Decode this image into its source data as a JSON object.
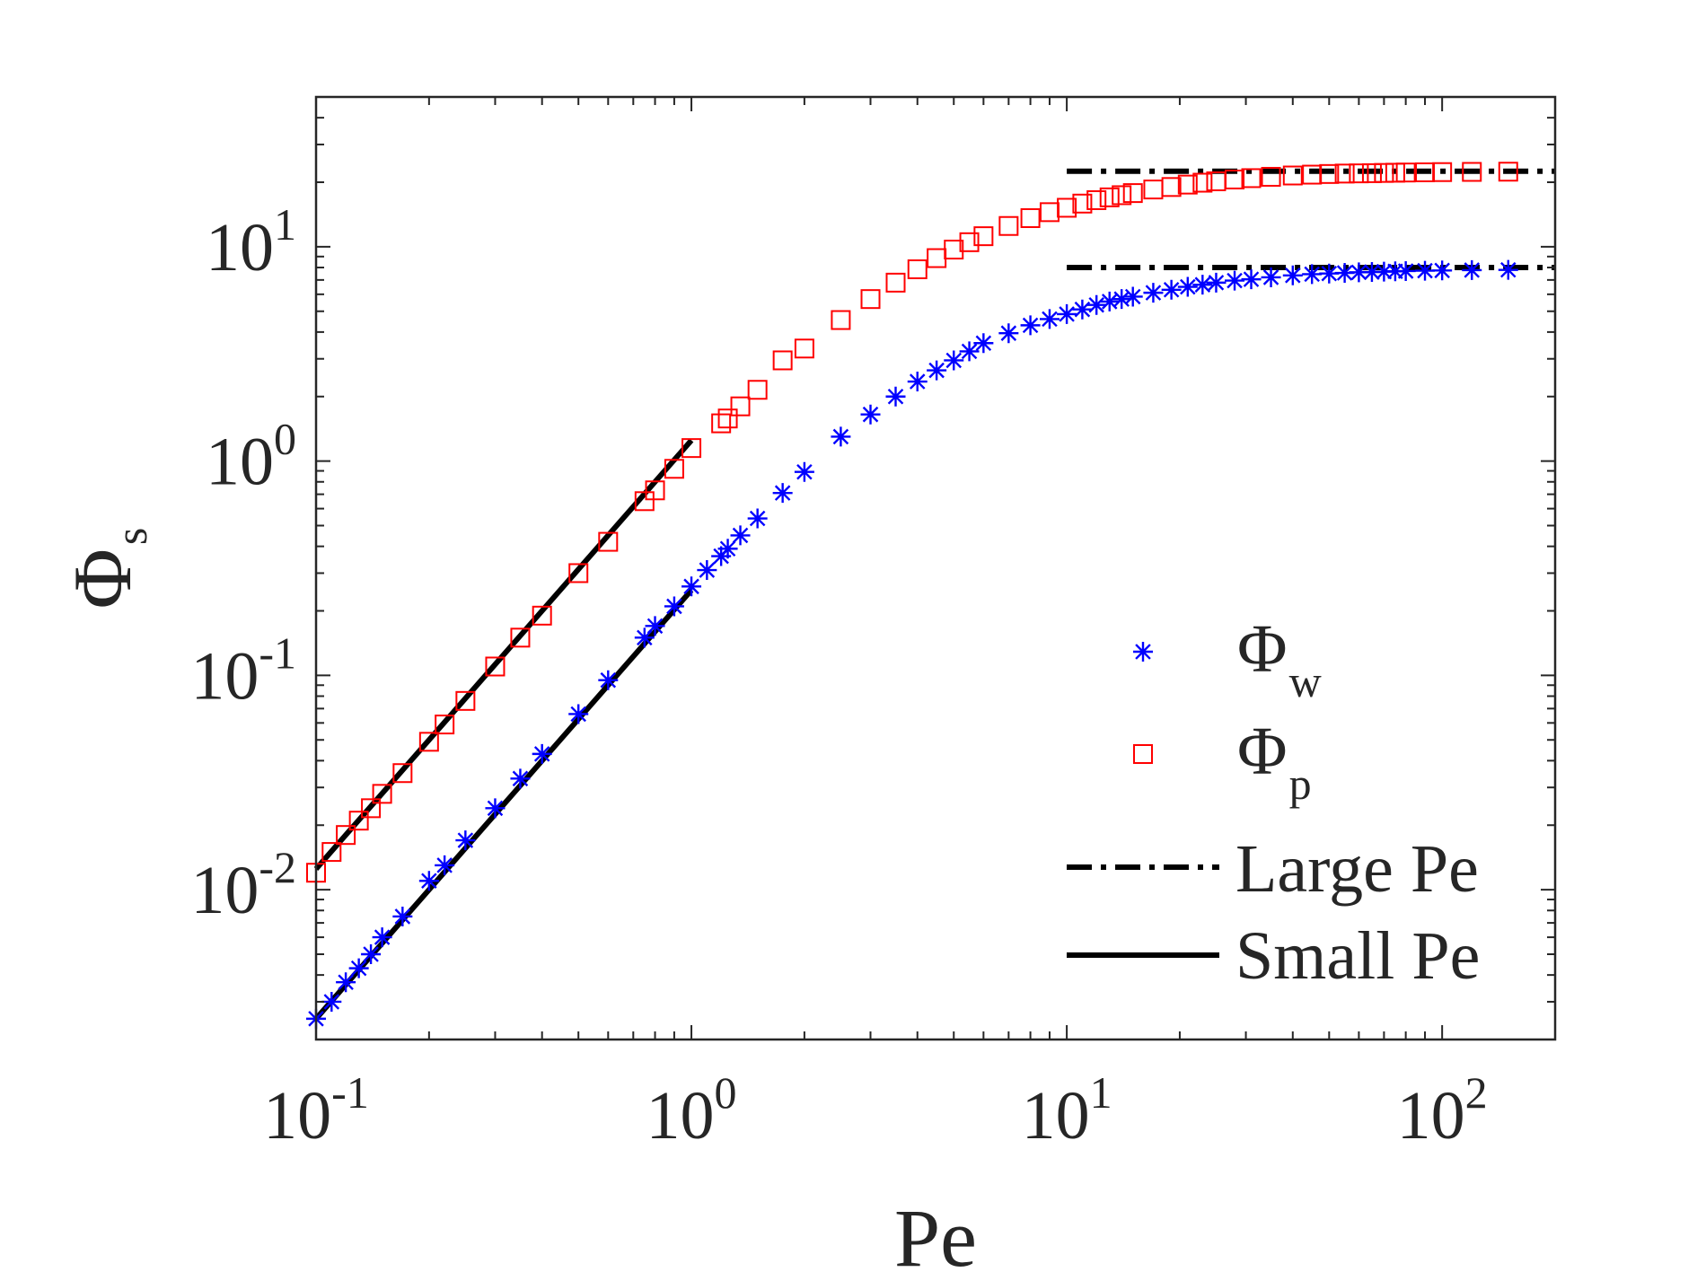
{
  "chart_data": {
    "type": "scatter",
    "xscale": "log",
    "yscale": "log",
    "xlim": [
      0.1,
      200
    ],
    "ylim": [
      0.002,
      50
    ],
    "xlabel": "Pe",
    "ylabel": {
      "base": "Φ",
      "sub": "s"
    },
    "xticks": [
      {
        "value": 0.1,
        "base": "10",
        "exp": "-1"
      },
      {
        "value": 1,
        "base": "10",
        "exp": "0"
      },
      {
        "value": 10,
        "base": "10",
        "exp": "1"
      },
      {
        "value": 100,
        "base": "10",
        "exp": "2"
      }
    ],
    "yticks": [
      {
        "value": 0.01,
        "base": "10",
        "exp": "-2"
      },
      {
        "value": 0.1,
        "base": "10",
        "exp": "-1"
      },
      {
        "value": 1,
        "base": "10",
        "exp": "0"
      },
      {
        "value": 10,
        "base": "10",
        "exp": "1"
      }
    ],
    "legend_position": "lower-right",
    "series": [
      {
        "name": "Φw",
        "base": "Φ",
        "sub": "w",
        "marker": "asterisk",
        "color": "#0000ff",
        "x": [
          0.1,
          0.11,
          0.12,
          0.13,
          0.14,
          0.15,
          0.17,
          0.2,
          0.22,
          0.25,
          0.3,
          0.35,
          0.4,
          0.5,
          0.6,
          0.75,
          0.8,
          0.9,
          1.0,
          1.1,
          1.2,
          1.25,
          1.35,
          1.5,
          1.75,
          2.0,
          2.5,
          3.0,
          3.5,
          4.0,
          4.5,
          5.0,
          5.5,
          6.0,
          7.0,
          8.0,
          9.0,
          10,
          11,
          12,
          13,
          14,
          15,
          17,
          19,
          21,
          23,
          25,
          28,
          31,
          35,
          40,
          45,
          50,
          55,
          60,
          65,
          70,
          75,
          80,
          90,
          100,
          120,
          150
        ],
        "y": [
          0.0025,
          0.003,
          0.0037,
          0.0043,
          0.005,
          0.006,
          0.0075,
          0.011,
          0.013,
          0.017,
          0.024,
          0.033,
          0.043,
          0.066,
          0.095,
          0.15,
          0.17,
          0.21,
          0.26,
          0.31,
          0.36,
          0.39,
          0.45,
          0.54,
          0.71,
          0.89,
          1.3,
          1.65,
          2.0,
          2.35,
          2.65,
          2.95,
          3.25,
          3.55,
          3.95,
          4.3,
          4.6,
          4.85,
          5.1,
          5.35,
          5.55,
          5.7,
          5.85,
          6.1,
          6.3,
          6.5,
          6.65,
          6.8,
          6.95,
          7.05,
          7.2,
          7.35,
          7.45,
          7.5,
          7.55,
          7.6,
          7.62,
          7.65,
          7.68,
          7.7,
          7.73,
          7.75,
          7.78,
          7.8
        ]
      },
      {
        "name": "Φp",
        "base": "Φ",
        "sub": "p",
        "marker": "square",
        "color": "#ff0000",
        "x": [
          0.1,
          0.11,
          0.12,
          0.13,
          0.14,
          0.15,
          0.17,
          0.2,
          0.22,
          0.25,
          0.3,
          0.35,
          0.4,
          0.5,
          0.6,
          0.75,
          0.8,
          0.9,
          1.0,
          1.2,
          1.25,
          1.35,
          1.5,
          1.75,
          2.0,
          2.5,
          3.0,
          3.5,
          4.0,
          4.5,
          5.0,
          5.5,
          6.0,
          7.0,
          8.0,
          9.0,
          10,
          11,
          12,
          13,
          14,
          15,
          17,
          19,
          21,
          23,
          25,
          28,
          31,
          35,
          40,
          45,
          50,
          55,
          60,
          65,
          70,
          75,
          80,
          90,
          100,
          120,
          150
        ],
        "y": [
          0.012,
          0.015,
          0.018,
          0.021,
          0.024,
          0.028,
          0.035,
          0.049,
          0.059,
          0.076,
          0.11,
          0.15,
          0.19,
          0.3,
          0.42,
          0.65,
          0.73,
          0.92,
          1.15,
          1.5,
          1.58,
          1.8,
          2.15,
          2.95,
          3.35,
          4.55,
          5.7,
          6.8,
          7.85,
          8.85,
          9.7,
          10.5,
          11.2,
          12.5,
          13.6,
          14.5,
          15.2,
          15.9,
          16.5,
          17.0,
          17.4,
          17.8,
          18.5,
          19.0,
          19.5,
          19.9,
          20.2,
          20.6,
          20.9,
          21.2,
          21.5,
          21.7,
          21.85,
          21.95,
          22.0,
          22.05,
          22.1,
          22.15,
          22.2,
          22.25,
          22.3,
          22.35,
          22.4
        ]
      }
    ],
    "reference_lines": [
      {
        "name": "Large Pe",
        "style": "dash-dot",
        "segments": [
          {
            "x": [
              10,
              200
            ],
            "y": [
              22.5,
              22.5
            ]
          },
          {
            "x": [
              10,
              200
            ],
            "y": [
              8.0,
              8.0
            ]
          }
        ]
      },
      {
        "name": "Small Pe",
        "style": "solid",
        "segments": [
          {
            "x": [
              0.1,
              1.0
            ],
            "y": [
              0.0125,
              1.25
            ]
          },
          {
            "x": [
              0.1,
              1.0
            ],
            "y": [
              0.0025,
              0.25
            ]
          }
        ]
      }
    ]
  }
}
